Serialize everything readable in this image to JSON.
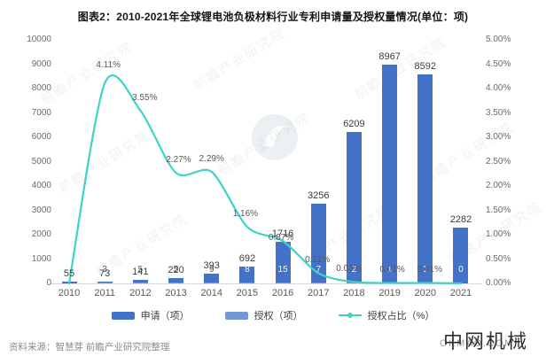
{
  "title": "图表2：2010-2021年全球锂电池负极材料行业专利申请量及授权量情况(单位：项)",
  "source_note": "资料来源：智慧芽 前瞻产业研究院整理",
  "watermarks": {
    "brand": "前瞻产业研究院",
    "corner_cn": "中网机械",
    "corner_en": "OKMAO.COM"
  },
  "colors": {
    "application_bar": "#4472C8",
    "grant_bar": "#7596D4",
    "ratio_line": "#3FD2C7",
    "axis_text": "#6B6B6B",
    "label_text": "#3C3C3C"
  },
  "legend": [
    {
      "label": "申请（项）",
      "type": "bar",
      "color": "#4472C8"
    },
    {
      "label": "授权（项）",
      "type": "bar",
      "color": "#7596D4"
    },
    {
      "label": "授权占比（%）",
      "type": "line",
      "color": "#3FD2C7"
    }
  ],
  "chart_data": {
    "type": "bar",
    "title": "图表2：2010-2021年全球锂电池负极材料行业专利申请量及授权量情况(单位：项)",
    "categories": [
      "2010",
      "2011",
      "2012",
      "2013",
      "2014",
      "2015",
      "2016",
      "2017",
      "2018",
      "2019",
      "2020",
      "2021"
    ],
    "series": [
      {
        "name": "申请（项）",
        "type": "bar",
        "axis": "left",
        "values": [
          55,
          73,
          141,
          220,
          393,
          692,
          1716,
          3256,
          6209,
          8967,
          8592,
          2282
        ]
      },
      {
        "name": "授权（项）",
        "type": "bar",
        "axis": "left",
        "values": [
          0,
          3,
          5,
          5,
          9,
          8,
          15,
          7,
          2,
          1,
          1,
          0
        ],
        "point_labels": [
          "",
          "3",
          "5",
          "5",
          "9",
          "8",
          "15",
          "7",
          "2",
          "1",
          "1",
          "0"
        ]
      },
      {
        "name": "授权占比（%）",
        "type": "line",
        "axis": "right",
        "unit": "%",
        "values": [
          0.0,
          4.11,
          3.55,
          2.27,
          2.29,
          1.16,
          0.87,
          0.21,
          0.03,
          0.01,
          0.01,
          0.0
        ],
        "point_labels": [
          "",
          "4.11%",
          "3.55%",
          "2.27%",
          "2.29%",
          "1.16%",
          "0.87%",
          "0.21%",
          "0.03%",
          "0.01%",
          "0.01%",
          ""
        ]
      }
    ],
    "left_axis": {
      "min": 0,
      "max": 10000,
      "step": 1000
    },
    "right_axis": {
      "min": 0,
      "max": 5,
      "step": 0.5,
      "format": "0.00%"
    },
    "grid": false,
    "legend_position": "bottom"
  }
}
